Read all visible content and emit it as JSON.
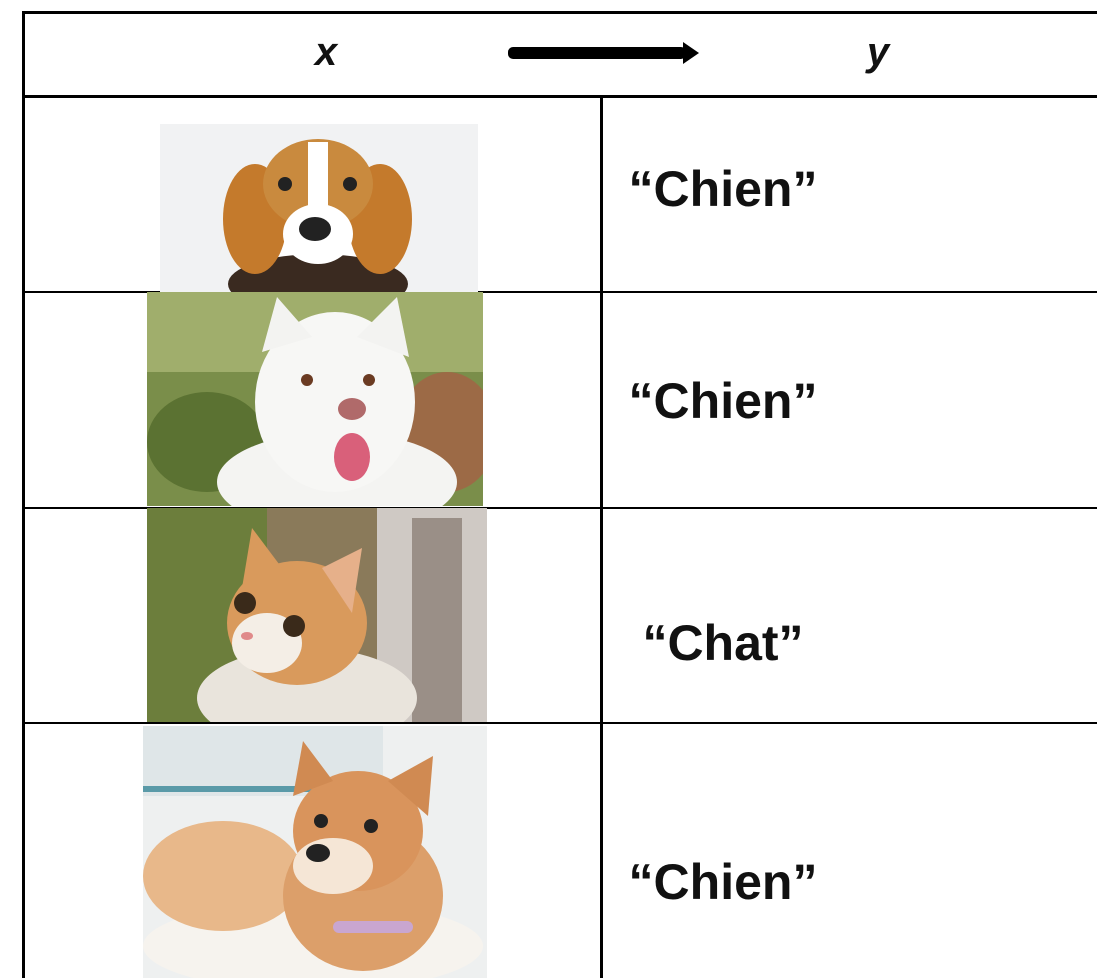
{
  "header": {
    "x": "x",
    "y": "y"
  },
  "rows": [
    {
      "label": "“Chien”"
    },
    {
      "label": "“Chien”"
    },
    {
      "label": "“Chat”"
    },
    {
      "label": "“Chien”"
    }
  ]
}
